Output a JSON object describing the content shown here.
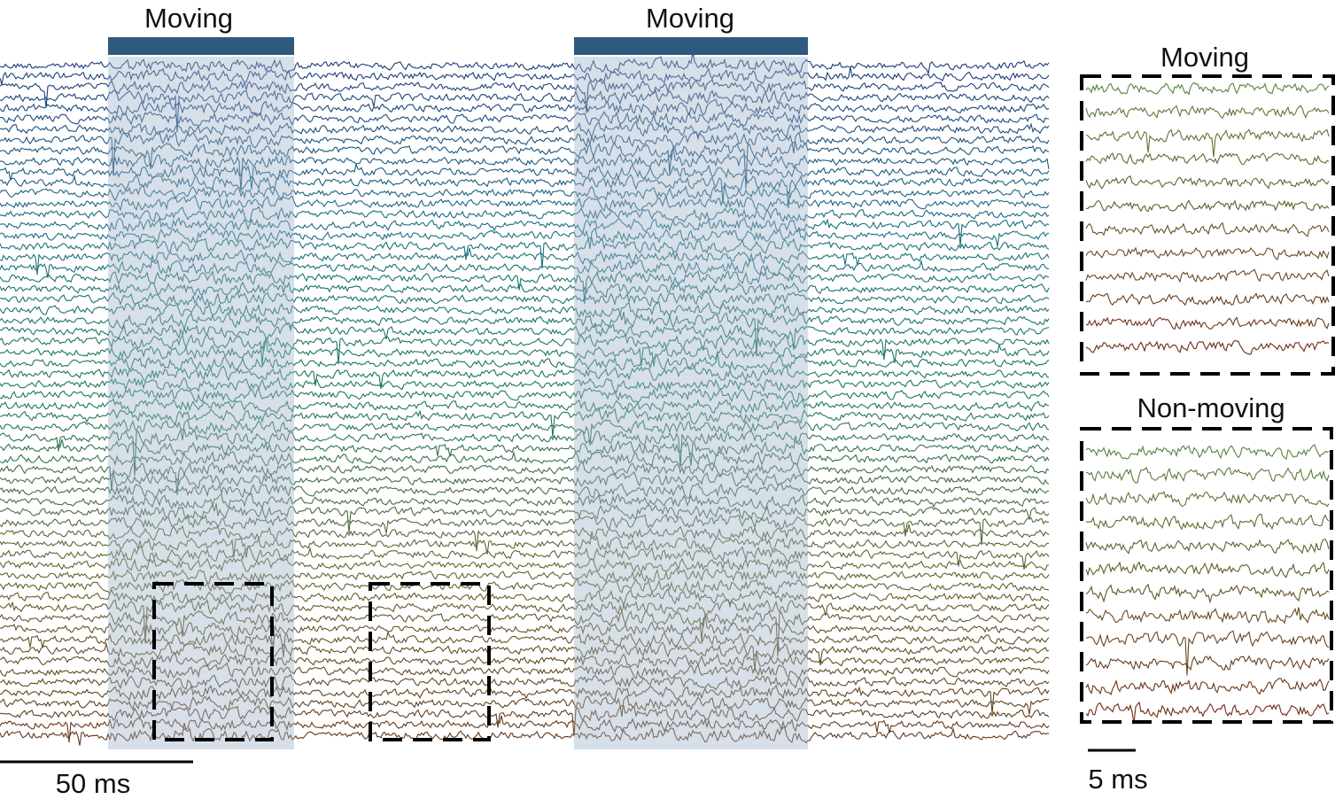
{
  "main": {
    "periods": [
      "Moving",
      "Moving"
    ],
    "scale_bar": "50 ms"
  },
  "insets": [
    {
      "title": "Moving"
    },
    {
      "title": "Non-moving"
    }
  ],
  "inset_scale_bar": "5 ms"
}
